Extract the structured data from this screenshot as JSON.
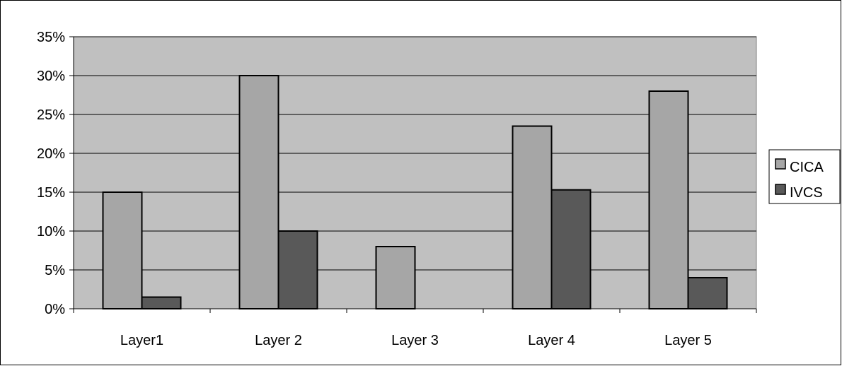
{
  "chart_data": {
    "type": "bar",
    "categories": [
      "Layer1",
      "Layer 2",
      "Layer 3",
      "Layer 4",
      "Layer 5"
    ],
    "series": [
      {
        "name": "CICA",
        "values": [
          15,
          30,
          8,
          23.5,
          28
        ],
        "color": "#a6a6a6"
      },
      {
        "name": "IVCS",
        "values": [
          1.5,
          10,
          0,
          15.3,
          4
        ],
        "color": "#595959"
      }
    ],
    "ylim": [
      0,
      35
    ],
    "yticks": [
      0,
      5,
      10,
      15,
      20,
      25,
      30,
      35
    ],
    "ytick_labels": [
      "0%",
      "5%",
      "10%",
      "15%",
      "20%",
      "25%",
      "30%",
      "35%"
    ],
    "grid": true,
    "plot_background": "#c0c0c0",
    "legend_position": "right"
  }
}
